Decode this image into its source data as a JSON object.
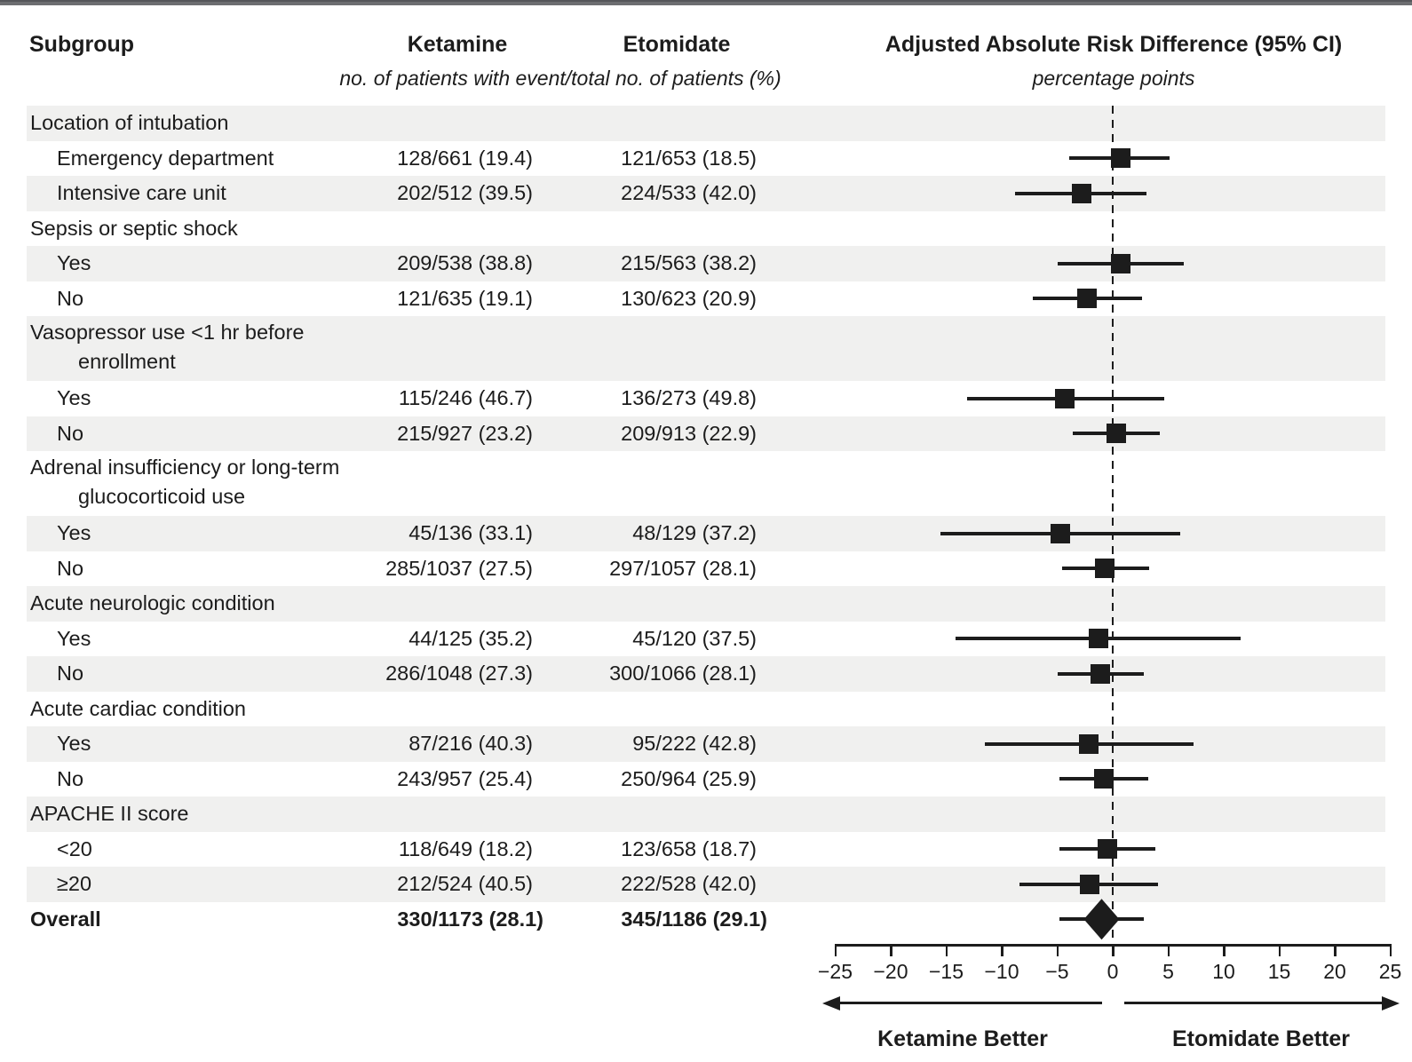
{
  "header": {
    "subgroup": "Subgroup",
    "ketamine": "Ketamine",
    "etomidate": "Etomidate",
    "risk_diff": "Adjusted Absolute Risk Difference (95% CI)",
    "counts_subtitle": "no. of patients with event/total no. of patients (%)",
    "axis_subtitle": "percentage points"
  },
  "colors": {
    "ink": "#1c1c1c",
    "row_shade": "#f0f0ef",
    "top_bar": "#6d6e71"
  },
  "chart_data": {
    "type": "scatter",
    "variant": "forest-plot",
    "title": "Adjusted Absolute Risk Difference (95% CI)",
    "xlabel": "percentage points",
    "x_axis": {
      "min": -25,
      "max": 25,
      "step": 5,
      "ticks": [
        -25,
        -20,
        -15,
        -10,
        -5,
        0,
        5,
        10,
        15,
        20,
        25
      ],
      "tick_labels": [
        "−25",
        "−20",
        "−15",
        "−10",
        "−5",
        "0",
        "5",
        "10",
        "15",
        "20",
        "25"
      ],
      "zero_reference_line": true,
      "left_direction_label": "Ketamine Better",
      "right_direction_label": "Etomidate Better"
    },
    "columns": {
      "subgroup": "Subgroup",
      "ketamine": "Ketamine",
      "etomidate": "Etomidate",
      "units_note": "no. of patients with event/total no. of patients (%)"
    },
    "rows": [
      {
        "label": "Location of intubation",
        "is_header": true
      },
      {
        "label": "Emergency department",
        "indent": 1,
        "ketamine": "128/661 (19.4)",
        "etomidate": "121/653 (18.5)",
        "estimate": 0.7,
        "ci_lower": -3.9,
        "ci_upper": 5.1
      },
      {
        "label": "Intensive care unit",
        "indent": 1,
        "ketamine": "202/512 (39.5)",
        "etomidate": "224/533 (42.0)",
        "estimate": -2.8,
        "ci_lower": -8.8,
        "ci_upper": 3.0
      },
      {
        "label": "Sepsis or septic shock",
        "is_header": true
      },
      {
        "label": "Yes",
        "indent": 1,
        "ketamine": "209/538 (38.8)",
        "etomidate": "215/563 (38.2)",
        "estimate": 0.7,
        "ci_lower": -5.0,
        "ci_upper": 6.4
      },
      {
        "label": "No",
        "indent": 1,
        "ketamine": "121/635 (19.1)",
        "etomidate": "130/623 (20.9)",
        "estimate": -2.3,
        "ci_lower": -7.2,
        "ci_upper": 2.6
      },
      {
        "label": "Vasopressor use <1 hr before",
        "label2": "enrollment",
        "is_header": true
      },
      {
        "label": "Yes",
        "indent": 1,
        "ketamine": "115/246 (46.7)",
        "etomidate": "136/273 (49.8)",
        "estimate": -4.3,
        "ci_lower": -13.1,
        "ci_upper": 4.6
      },
      {
        "label": "No",
        "indent": 1,
        "ketamine": "215/927 (23.2)",
        "etomidate": "209/913 (22.9)",
        "estimate": 0.3,
        "ci_lower": -3.6,
        "ci_upper": 4.2
      },
      {
        "label": "Adrenal insufficiency or long-term",
        "label2": "glucocorticoid use",
        "is_header": true
      },
      {
        "label": "Yes",
        "indent": 1,
        "ketamine": "45/136 (33.1)",
        "etomidate": "48/129 (37.2)",
        "estimate": -4.7,
        "ci_lower": -15.5,
        "ci_upper": 6.1
      },
      {
        "label": "No",
        "indent": 1,
        "ketamine": "285/1037 (27.5)",
        "etomidate": "297/1057 (28.1)",
        "estimate": -0.7,
        "ci_lower": -4.6,
        "ci_upper": 3.3
      },
      {
        "label": "Acute neurologic condition",
        "is_header": true
      },
      {
        "label": "Yes",
        "indent": 1,
        "ketamine": "44/125 (35.2)",
        "etomidate": "45/120 (37.5)",
        "estimate": -1.3,
        "ci_lower": -14.2,
        "ci_upper": 11.5
      },
      {
        "label": "No",
        "indent": 1,
        "ketamine": "286/1048 (27.3)",
        "etomidate": "300/1066 (28.1)",
        "estimate": -1.1,
        "ci_lower": -5.0,
        "ci_upper": 2.8
      },
      {
        "label": "Acute cardiac condition",
        "is_header": true
      },
      {
        "label": "Yes",
        "indent": 1,
        "ketamine": "87/216 (40.3)",
        "etomidate": "95/222 (42.8)",
        "estimate": -2.2,
        "ci_lower": -11.5,
        "ci_upper": 7.3
      },
      {
        "label": "No",
        "indent": 1,
        "ketamine": "243/957 (25.4)",
        "etomidate": "250/964 (25.9)",
        "estimate": -0.8,
        "ci_lower": -4.8,
        "ci_upper": 3.2
      },
      {
        "label": "APACHE II score",
        "is_header": true
      },
      {
        "label": "<20",
        "indent": 1,
        "ketamine": "118/649 (18.2)",
        "etomidate": "123/658 (18.7)",
        "estimate": -0.5,
        "ci_lower": -4.8,
        "ci_upper": 3.8
      },
      {
        "label": "≥20",
        "indent": 1,
        "ketamine": "212/524 (40.5)",
        "etomidate": "222/528 (42.0)",
        "estimate": -2.1,
        "ci_lower": -8.4,
        "ci_upper": 4.1
      },
      {
        "label": "Overall",
        "is_overall": true,
        "bold": true,
        "marker": "diamond",
        "ketamine": "330/1173 (28.1)",
        "etomidate": "345/1186 (29.1)",
        "estimate": -1.0,
        "ci_lower": -4.8,
        "ci_upper": 2.8
      }
    ]
  }
}
